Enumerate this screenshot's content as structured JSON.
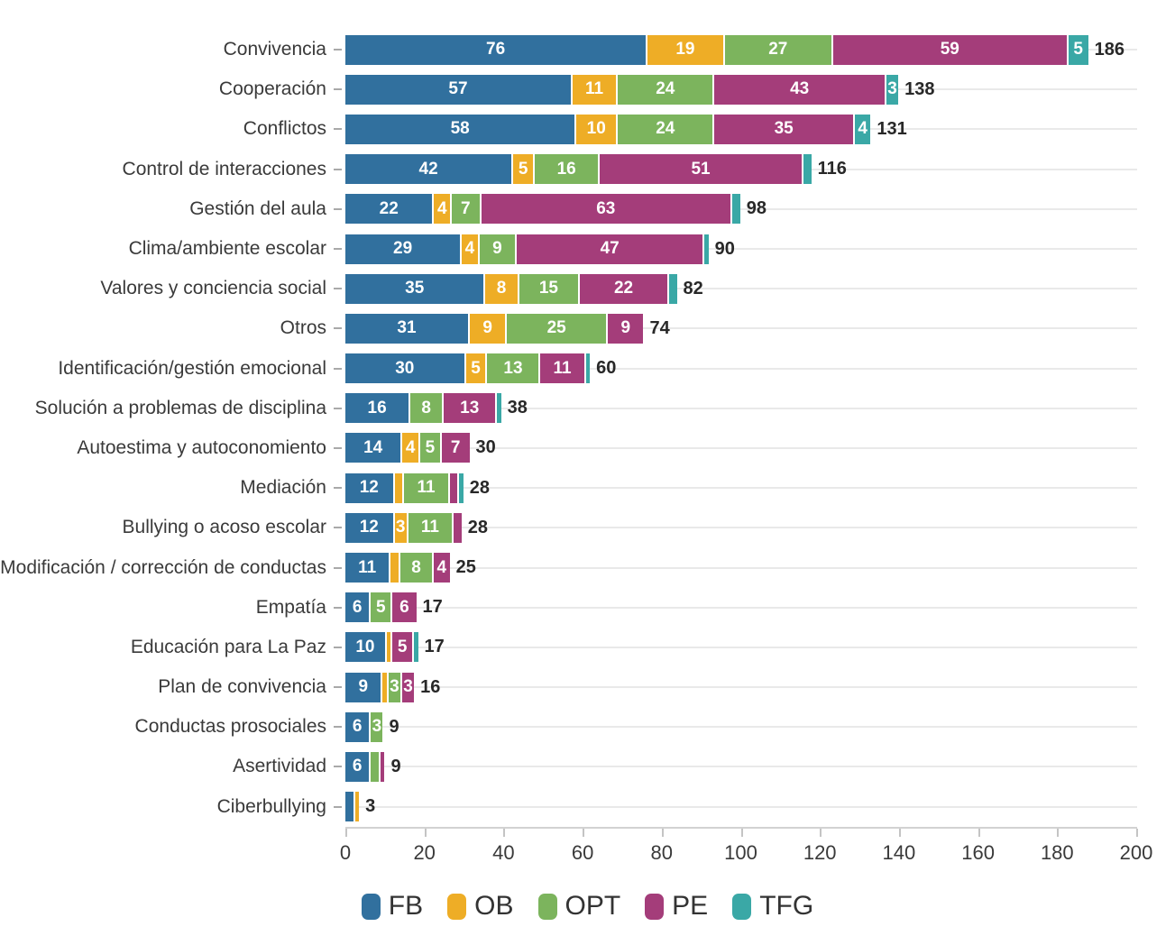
{
  "chart_data": {
    "type": "bar",
    "orientation": "horizontal",
    "stacked": true,
    "title": "",
    "xlabel": "",
    "ylabel": "",
    "xlim": [
      0,
      200
    ],
    "x_ticks": [
      0,
      20,
      40,
      60,
      80,
      100,
      120,
      140,
      160,
      180,
      200
    ],
    "grid": "horizontal-per-row",
    "legend_position": "bottom-center",
    "value_label_min": 3,
    "categories": [
      "Convivencia",
      "Cooperación",
      "Conflictos",
      "Control de interacciones",
      "Gestión del aula",
      "Clima/ambiente escolar",
      "Valores y conciencia social",
      "Otros",
      "Identificación/gestión emocional",
      "Solución a problemas de disciplina",
      "Autoestima y autoconomiento",
      "Mediación",
      "Bullying o acoso escolar",
      "Modificación / corrección de conductas",
      "Empatía",
      "Educación para La Paz",
      "Plan de convivencia",
      "Conductas prosociales",
      "Asertividad",
      "Ciberbullying"
    ],
    "series": [
      {
        "name": "FB",
        "color": "#31709e",
        "values": [
          76,
          57,
          58,
          42,
          22,
          29,
          35,
          31,
          30,
          16,
          14,
          12,
          12,
          11,
          6,
          10,
          9,
          6,
          6,
          2
        ]
      },
      {
        "name": "OB",
        "color": "#eead26",
        "values": [
          19,
          11,
          10,
          5,
          4,
          4,
          8,
          9,
          5,
          0,
          4,
          2,
          3,
          2,
          0,
          1,
          1,
          0,
          0,
          1
        ]
      },
      {
        "name": "OPT",
        "color": "#7cb45d",
        "values": [
          27,
          24,
          24,
          16,
          7,
          9,
          15,
          25,
          13,
          8,
          5,
          11,
          11,
          8,
          5,
          0,
          3,
          3,
          2,
          0
        ]
      },
      {
        "name": "PE",
        "color": "#a43d7a",
        "values": [
          59,
          43,
          35,
          51,
          63,
          47,
          22,
          9,
          11,
          13,
          7,
          2,
          2,
          4,
          6,
          5,
          3,
          0,
          1,
          0
        ]
      },
      {
        "name": "TFG",
        "color": "#3aa8a6",
        "values": [
          5,
          3,
          4,
          2,
          2,
          1,
          2,
          0,
          1,
          1,
          0,
          1,
          0,
          0,
          0,
          1,
          0,
          0,
          0,
          0
        ]
      }
    ],
    "totals": [
      186,
      138,
      131,
      116,
      98,
      90,
      82,
      74,
      60,
      38,
      30,
      28,
      28,
      25,
      17,
      17,
      16,
      9,
      9,
      3
    ]
  }
}
